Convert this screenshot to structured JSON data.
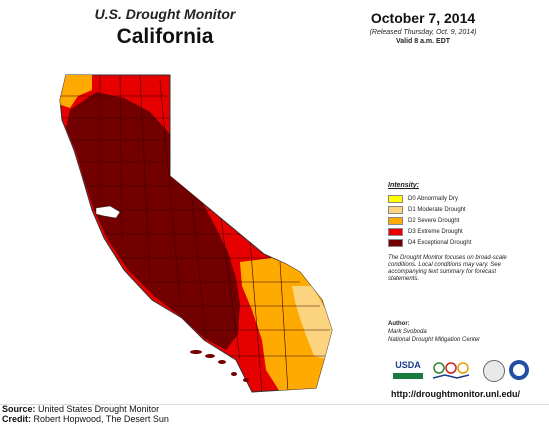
{
  "map": {
    "publisher": "U.S. Drought Monitor",
    "region": "California",
    "date": "October 7, 2014",
    "released": "(Released Thursday, Oct. 9, 2014)",
    "valid": "Valid 8 a.m. EDT"
  },
  "legend": {
    "title": "Intensity:",
    "items": [
      {
        "label": "D0 Abnormally Dry",
        "color": "#ffff00"
      },
      {
        "label": "D1 Moderate Drought",
        "color": "#fcd37f"
      },
      {
        "label": "D2 Severe Drought",
        "color": "#ffaa00"
      },
      {
        "label": "D3 Extreme Drought",
        "color": "#e60000"
      },
      {
        "label": "D4 Exceptional Drought",
        "color": "#730000"
      }
    ],
    "note": "The Drought Monitor focuses on broad-scale conditions. Local conditions may vary. See accompanying text summary for forecast statements."
  },
  "author": {
    "label": "Author:",
    "name": "Mark Svoboda",
    "org": "National Drought Mitigation Center"
  },
  "logos": {
    "usda": "USDA"
  },
  "url": "http://droughtmonitor.unl.edu/",
  "captions": {
    "source_label": "Source:",
    "source_text": "United States Drought Monitor",
    "credit_label": "Credit:",
    "credit_text": "Robert Hopwood, The Desert Sun"
  }
}
